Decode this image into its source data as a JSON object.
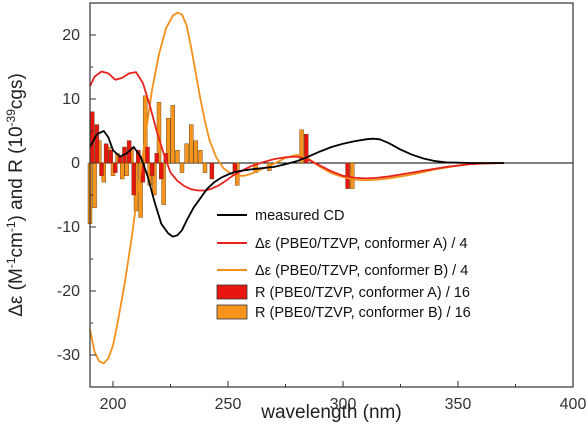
{
  "chart_data": {
    "type": "line",
    "xlabel": "wavelength (nm)",
    "ylabel": "Δε (M-1cm-1) and R (10-39cgs)",
    "ylabel_parts": {
      "prefix": "Δε (M",
      "sup1": "-1",
      "mid": "cm",
      "sup2": "-1",
      "mid2": ") and R (10",
      "sup3": "-39",
      "suffix": "cgs)"
    },
    "xlim": [
      190,
      400
    ],
    "ylim": [
      -35,
      25
    ],
    "xticks": [
      200,
      250,
      300,
      350,
      400
    ],
    "yticks": [
      -30,
      -20,
      -10,
      0,
      10,
      20
    ],
    "grid": false,
    "legend_position": "bottom-right",
    "series": [
      {
        "name": "measured CD",
        "kind": "line",
        "color": "#000000",
        "x": [
          190,
          193,
          196,
          198,
          200,
          203,
          206,
          209,
          212,
          215,
          218,
          221,
          224,
          226,
          228,
          230,
          232,
          235,
          238,
          241,
          244,
          247,
          250,
          253,
          256,
          260,
          265,
          270,
          275,
          280,
          285,
          290,
          295,
          300,
          305,
          310,
          313,
          316,
          320,
          325,
          330,
          335,
          340,
          345,
          350,
          355,
          360,
          365,
          370
        ],
        "y": [
          2.5,
          4.5,
          5.0,
          4.0,
          2.0,
          1.0,
          1.5,
          2.5,
          1.0,
          -2.0,
          -6.0,
          -9.5,
          -11.0,
          -11.5,
          -11.3,
          -10.5,
          -9.0,
          -7.0,
          -5.5,
          -4.0,
          -3.0,
          -2.3,
          -1.8,
          -1.4,
          -1.2,
          -1.0,
          -0.8,
          -0.6,
          -0.2,
          0.3,
          1.0,
          1.8,
          2.5,
          3.0,
          3.4,
          3.7,
          3.8,
          3.7,
          3.1,
          2.1,
          1.3,
          0.7,
          0.3,
          0.1,
          0.05,
          0,
          0,
          0,
          0
        ]
      },
      {
        "name": "Δε (PBE0/TZVP, conformer A) / 4",
        "kind": "line",
        "color": "#e8221c",
        "x": [
          190,
          192,
          195,
          198,
          201,
          204,
          207,
          210,
          213,
          216,
          219,
          222,
          225,
          228,
          231,
          234,
          237,
          240,
          243,
          246,
          249,
          252,
          256,
          260,
          265,
          270,
          275,
          280,
          285,
          290,
          295,
          300,
          305,
          310,
          315,
          320,
          325,
          330,
          335,
          340,
          345,
          350,
          355,
          360,
          365,
          370
        ],
        "y": [
          12.0,
          13.5,
          14.3,
          14.0,
          13.0,
          13.3,
          14.0,
          14.2,
          12.5,
          9.0,
          5.0,
          1.5,
          -1.5,
          -2.8,
          -3.6,
          -4.1,
          -4.3,
          -4.3,
          -4.0,
          -3.5,
          -2.8,
          -2.0,
          -1.2,
          -0.5,
          0.1,
          0.6,
          0.9,
          1.0,
          0.5,
          -0.4,
          -1.3,
          -2.0,
          -2.3,
          -2.4,
          -2.3,
          -2.1,
          -1.8,
          -1.5,
          -1.2,
          -0.9,
          -0.6,
          -0.4,
          -0.2,
          -0.1,
          -0.05,
          0
        ]
      },
      {
        "name": "Δε (PBE0/TZVP, conformer B) / 4",
        "kind": "line",
        "color": "#f39019",
        "x": [
          190,
          192,
          194,
          196,
          198,
          200,
          202,
          205,
          208,
          211,
          214,
          217,
          220,
          223,
          226,
          228,
          230,
          232,
          234,
          236,
          238,
          240,
          242,
          245,
          248,
          251,
          254,
          257,
          260,
          265,
          270,
          275,
          280,
          285,
          290,
          295,
          300,
          305,
          310,
          315,
          320,
          325,
          330,
          335,
          340,
          345,
          350,
          355,
          360,
          365,
          370
        ],
        "y": [
          -26.0,
          -29.5,
          -31.0,
          -31.3,
          -30.5,
          -28.5,
          -25.0,
          -19.0,
          -12.0,
          -4.0,
          4.0,
          11.5,
          17.0,
          21.0,
          23.0,
          23.5,
          23.2,
          21.5,
          18.0,
          14.0,
          10.0,
          6.5,
          3.5,
          0.8,
          -0.8,
          -1.6,
          -2.0,
          -2.0,
          -1.7,
          -0.9,
          -0.1,
          0.8,
          1.3,
          0.7,
          -0.6,
          -1.6,
          -2.2,
          -2.6,
          -2.7,
          -2.6,
          -2.4,
          -2.1,
          -1.8,
          -1.4,
          -1.0,
          -0.7,
          -0.4,
          -0.2,
          -0.1,
          0,
          0
        ]
      }
    ],
    "bars": [
      {
        "name": "R (PBE0/TZVP, conformer A) / 16",
        "color": "#e8160f",
        "x": [
          191,
          193,
          195,
          197,
          199,
          201,
          203,
          205,
          207,
          209,
          211,
          213,
          215,
          217,
          219,
          221,
          223,
          243,
          253,
          284,
          302
        ],
        "values": [
          8.0,
          6.0,
          -2.0,
          3.0,
          2.0,
          -1.5,
          1.0,
          2.5,
          3.5,
          -5.0,
          2.0,
          -3.0,
          2.5,
          -2.0,
          1.5,
          -2.5,
          1.5,
          -2.5,
          -1.5,
          4.5,
          -4.0
        ]
      },
      {
        "name": "R (PBE0/TZVP, conformer B) / 16",
        "color": "#f7941d",
        "x": [
          190,
          192,
          194,
          196,
          198,
          200,
          202,
          204,
          206,
          208,
          210,
          212,
          214,
          216,
          218,
          220,
          222,
          224,
          226,
          228,
          230,
          232,
          234,
          236,
          238,
          240,
          254,
          262,
          268,
          282,
          304
        ],
        "values": [
          -9.5,
          -7.0,
          3.5,
          -3.0,
          2.5,
          -2.0,
          1.5,
          -2.5,
          -2.0,
          2.5,
          -7.5,
          -8.5,
          10.5,
          -3.5,
          -5.0,
          9.5,
          -6.5,
          7.0,
          9.0,
          2.0,
          -1.5,
          3.0,
          6.0,
          3.5,
          2.0,
          -1.5,
          -3.5,
          -1.5,
          -1.2,
          5.2,
          -4.0
        ]
      }
    ]
  }
}
